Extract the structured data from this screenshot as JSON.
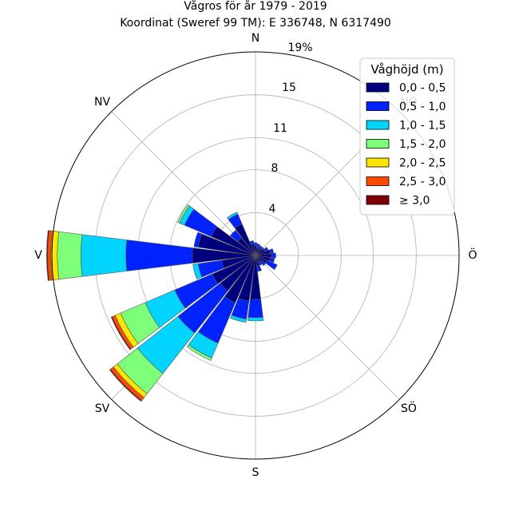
{
  "chart_data": {
    "type": "windrose",
    "title": "Vågros för år 1979 - 2019",
    "subtitle": "Koordinat (Sweref 99 TM): E 336748, N 6317490",
    "directions": [
      "N",
      "NO",
      "Ö",
      "SÖ",
      "S",
      "SV",
      "V",
      "NV"
    ],
    "radial_ticks": [
      "4",
      "8",
      "11",
      "15",
      "19%"
    ],
    "rmax": 19,
    "grid": true,
    "legend": {
      "title": "Våghöjd (m)",
      "placement": "top-right",
      "items": [
        {
          "label": "0,0 - 0,5",
          "color": "#00007f"
        },
        {
          "label": "0,5 - 1,0",
          "color": "#0022ff"
        },
        {
          "label": "1,0 - 1,5",
          "color": "#00d4ff"
        },
        {
          "label": "1,5 - 2,0",
          "color": "#7dff7a"
        },
        {
          "label": "2,0 - 2,5",
          "color": "#ffe600"
        },
        {
          "label": "2,5 - 3,0",
          "color": "#ff4a00"
        },
        {
          "label": "≥ 3,0",
          "color": "#7f0000"
        }
      ]
    },
    "bin_width_deg": 15,
    "sectors": [
      {
        "direction_deg": 0,
        "values": [
          0.9,
          0.3
        ]
      },
      {
        "direction_deg": 15,
        "values": [
          0.8,
          0.3
        ]
      },
      {
        "direction_deg": 30,
        "values": [
          0.7,
          0.3
        ]
      },
      {
        "direction_deg": 45,
        "values": [
          0.8,
          0.2
        ]
      },
      {
        "direction_deg": 60,
        "values": [
          1.0,
          0.3
        ]
      },
      {
        "direction_deg": 75,
        "values": [
          1.4,
          0.3
        ]
      },
      {
        "direction_deg": 90,
        "values": [
          1.5,
          0.4
        ]
      },
      {
        "direction_deg": 105,
        "values": [
          1.4,
          0.4
        ]
      },
      {
        "direction_deg": 120,
        "values": [
          1.2,
          1.0
        ]
      },
      {
        "direction_deg": 135,
        "values": [
          0.8,
          0.4
        ]
      },
      {
        "direction_deg": 150,
        "values": [
          0.7,
          0.3
        ]
      },
      {
        "direction_deg": 165,
        "values": [
          1.0,
          0.5
        ]
      },
      {
        "direction_deg": 180,
        "values": [
          4.1,
          1.7,
          0.3
        ]
      },
      {
        "direction_deg": 195,
        "values": [
          4.3,
          1.7,
          0.3
        ]
      },
      {
        "direction_deg": 210,
        "values": [
          4.8,
          4.1,
          1.5,
          0.25
        ]
      },
      {
        "direction_deg": 225,
        "values": [
          4.2,
          5.0,
          4.8,
          2.4,
          0.45,
          0.35,
          0.1
        ]
      },
      {
        "direction_deg": 240,
        "values": [
          4.4,
          3.8,
          3.0,
          2.5,
          0.55,
          0.3,
          0.1
        ]
      },
      {
        "direction_deg": 255,
        "values": [
          3.2,
          2.2,
          0.5
        ]
      },
      {
        "direction_deg": 270,
        "values": [
          5.9,
          6.2,
          4.2,
          2.2,
          0.6,
          0.3,
          0.1
        ]
      },
      {
        "direction_deg": 285,
        "values": [
          5.4,
          0.4
        ]
      },
      {
        "direction_deg": 300,
        "values": [
          4.5,
          2.7,
          0.5,
          0.2
        ]
      },
      {
        "direction_deg": 315,
        "values": [
          2.1,
          0.9
        ]
      },
      {
        "direction_deg": 330,
        "values": [
          3.2,
          1.0,
          0.2
        ]
      },
      {
        "direction_deg": 345,
        "values": [
          1.1,
          0.3
        ]
      }
    ]
  }
}
